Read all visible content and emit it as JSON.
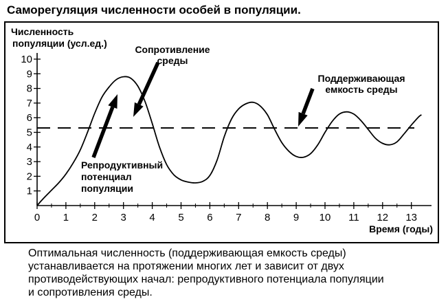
{
  "title": "Саморегуляция численности особей в популяции.",
  "caption_lines": [
    "Оптимальная численность (поддерживающая емкость среды)",
    "устанавливается на протяжении многих лет и зависит от двух",
    "противодействующих начал: репродуктивного потенциала популяции",
    "и сопротивления среды."
  ],
  "chart_data": {
    "type": "line",
    "ylabel": [
      "Численность",
      "популяции (усл.ед.)"
    ],
    "xlabel": "Время (годы)",
    "xlim": [
      0,
      13.6
    ],
    "ylim": [
      0,
      10
    ],
    "x_ticks": [
      "0",
      "1",
      "2",
      "3",
      "4",
      "5",
      "6",
      "7",
      "8",
      "9",
      "10",
      "11",
      "12",
      "13"
    ],
    "y_ticks": [
      "1",
      "2",
      "3",
      "4",
      "5",
      "6",
      "7",
      "8",
      "9",
      "10"
    ],
    "series": [
      {
        "type": "curve",
        "points": [
          [
            0,
            0
          ],
          [
            0.25,
            0.55
          ],
          [
            0.5,
            1.05
          ],
          [
            0.75,
            1.55
          ],
          [
            1.0,
            2.15
          ],
          [
            1.25,
            2.9
          ],
          [
            1.5,
            3.8
          ],
          [
            1.75,
            5.0
          ],
          [
            2.0,
            6.3
          ],
          [
            2.25,
            7.4
          ],
          [
            2.5,
            8.1
          ],
          [
            2.75,
            8.6
          ],
          [
            3.0,
            8.8
          ],
          [
            3.25,
            8.7
          ],
          [
            3.5,
            8.15
          ],
          [
            3.75,
            7.1
          ],
          [
            4.0,
            5.6
          ],
          [
            4.25,
            4.0
          ],
          [
            4.5,
            2.8
          ],
          [
            4.75,
            2.1
          ],
          [
            5.0,
            1.75
          ],
          [
            5.25,
            1.6
          ],
          [
            5.5,
            1.55
          ],
          [
            5.75,
            1.65
          ],
          [
            6.0,
            2.05
          ],
          [
            6.25,
            3.1
          ],
          [
            6.5,
            4.7
          ],
          [
            6.75,
            5.9
          ],
          [
            7.0,
            6.6
          ],
          [
            7.25,
            6.95
          ],
          [
            7.5,
            7.05
          ],
          [
            7.75,
            6.8
          ],
          [
            8.0,
            6.2
          ],
          [
            8.25,
            5.2
          ],
          [
            8.5,
            4.3
          ],
          [
            8.75,
            3.7
          ],
          [
            9.0,
            3.35
          ],
          [
            9.25,
            3.3
          ],
          [
            9.5,
            3.55
          ],
          [
            9.75,
            4.15
          ],
          [
            10.0,
            5.0
          ],
          [
            10.25,
            5.75
          ],
          [
            10.5,
            6.25
          ],
          [
            10.75,
            6.4
          ],
          [
            11.0,
            6.25
          ],
          [
            11.25,
            5.8
          ],
          [
            11.5,
            5.2
          ],
          [
            11.75,
            4.6
          ],
          [
            12.0,
            4.25
          ],
          [
            12.25,
            4.15
          ],
          [
            12.5,
            4.35
          ],
          [
            12.75,
            4.9
          ],
          [
            13.0,
            5.5
          ],
          [
            13.25,
            6.05
          ],
          [
            13.35,
            6.2
          ]
        ]
      },
      {
        "type": "dashed-line",
        "y": 5.3
      }
    ],
    "annotations": [
      {
        "lines": [
          "Сопротивление",
          "среды"
        ],
        "bold": true
      },
      {
        "lines": [
          "Поддерживающая",
          "емкость среды"
        ],
        "bold": true
      },
      {
        "lines": [
          "Репродуктивный",
          "потенциал",
          "популяции"
        ],
        "bold": true
      }
    ],
    "grid": false,
    "colors": {
      "line": "#000000",
      "background": "#ffffff"
    }
  }
}
